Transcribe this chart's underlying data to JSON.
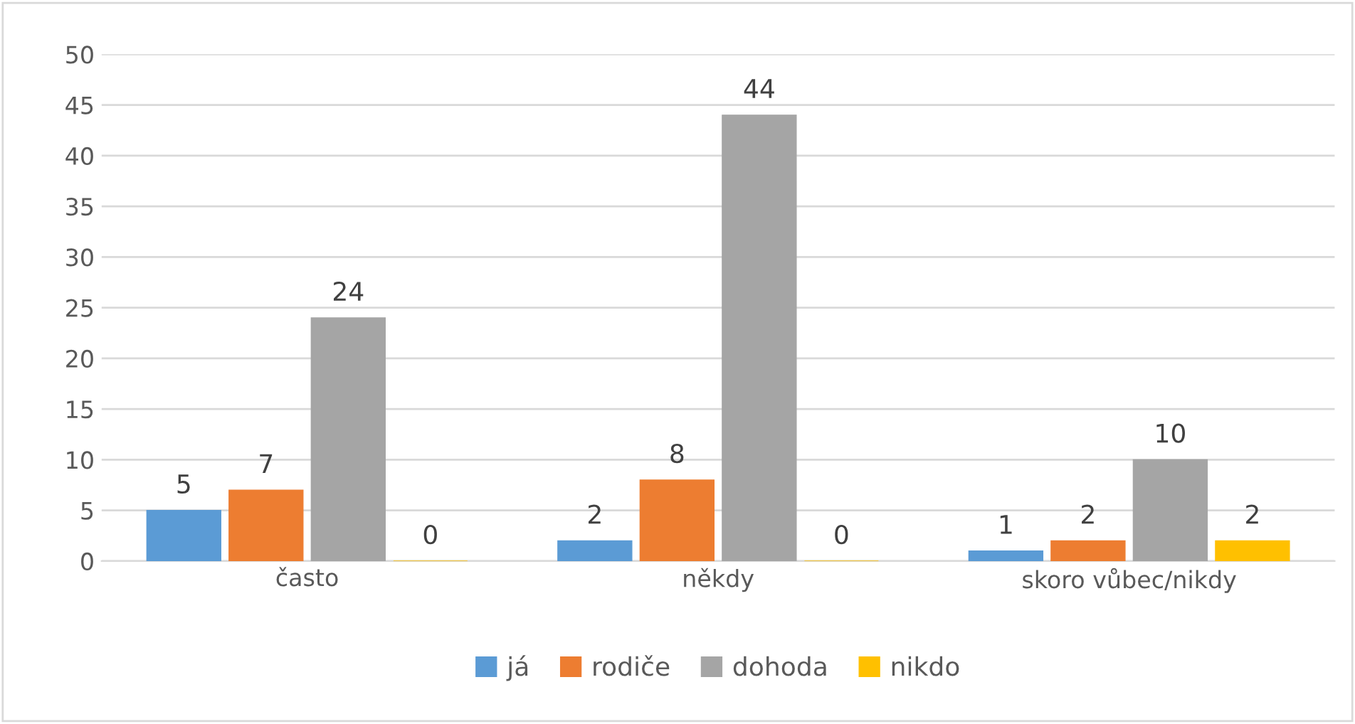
{
  "chart_data": {
    "type": "bar",
    "categories": [
      "často",
      "někdy",
      "skoro vůbec/nikdy"
    ],
    "series": [
      {
        "name": "já",
        "color": "#5b9bd5",
        "values": [
          5,
          2,
          1
        ]
      },
      {
        "name": "rodiče",
        "color": "#ed7d31",
        "values": [
          7,
          8,
          2
        ]
      },
      {
        "name": "dohoda",
        "color": "#a5a5a5",
        "values": [
          24,
          44,
          10
        ]
      },
      {
        "name": "nikdo",
        "color": "#ffc000",
        "values": [
          0,
          0,
          2
        ]
      }
    ],
    "ylim": [
      0,
      50
    ],
    "yticks": [
      0,
      5,
      10,
      15,
      20,
      25,
      30,
      35,
      40,
      45,
      50
    ],
    "grid": "y",
    "legend": "bottom",
    "data_labels": true
  }
}
